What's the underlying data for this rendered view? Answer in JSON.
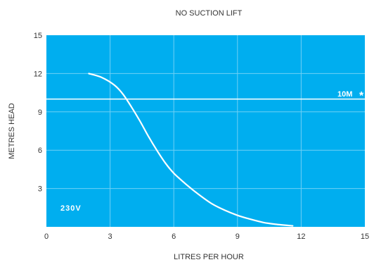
{
  "chart_data": {
    "type": "line",
    "title": "NO SUCTION LIFT",
    "xlabel": "LITRES PER HOUR",
    "ylabel": "METRES HEAD",
    "xlim": [
      0,
      15
    ],
    "ylim": [
      0,
      15
    ],
    "x_ticks": [
      "0",
      "3",
      "6",
      "9",
      "12",
      "15"
    ],
    "y_ticks": [
      "3",
      "6",
      "9",
      "12",
      "15"
    ],
    "grid": true,
    "series": [
      {
        "name": "230V",
        "x": [
          2.0,
          2.6,
          3.2,
          3.6,
          4.0,
          4.4,
          4.8,
          5.2,
          5.6,
          6.0,
          6.6,
          7.2,
          7.8,
          8.4,
          9.0,
          9.6,
          10.2,
          10.8,
          11.6
        ],
        "y": [
          12.0,
          11.7,
          11.1,
          10.4,
          9.4,
          8.3,
          7.1,
          6.0,
          5.0,
          4.2,
          3.3,
          2.5,
          1.8,
          1.3,
          0.9,
          0.6,
          0.35,
          0.2,
          0.08
        ]
      }
    ],
    "reference_line": {
      "y": 10,
      "label": "10M",
      "marker": "*"
    },
    "colors": {
      "plot_background": "#00aeef",
      "curve": "#ffffff",
      "gridline": "#6fd0f5",
      "text": "#333333"
    }
  }
}
